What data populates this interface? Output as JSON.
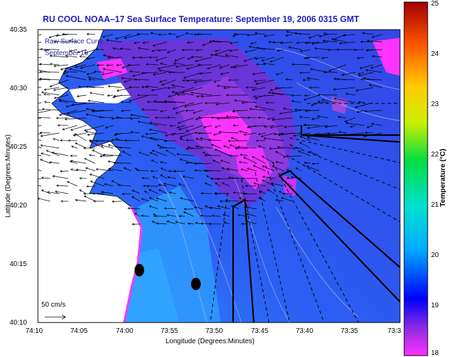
{
  "title": "RU COOL  NOAA–17  Sea Surface Temperature:  September 19, 2006 0315 GMT",
  "legend": {
    "line1": "Raw Surface Curre",
    "line2": "September 19"
  },
  "axes": {
    "xlabel": "Longitude (Degrees:Minutes)",
    "ylabel": "Latitude (Degrees:Minutes)",
    "xticks": [
      "74:10",
      "74:05",
      "74:00",
      "73:55",
      "73:50",
      "73:45",
      "73:40",
      "73:35",
      "73:3"
    ],
    "yticks": [
      "40:35",
      "40:30",
      "40:25",
      "40:20",
      "40:15",
      "40:10"
    ]
  },
  "colorbar": {
    "label": "Temperature (°C)",
    "min": 18,
    "max": 25,
    "ticks": [
      "25",
      "24",
      "23",
      "22",
      "21",
      "20",
      "19",
      "18"
    ]
  },
  "scale": {
    "label": "50 cm/s"
  },
  "colors": {
    "title": "#1f1fc0",
    "ocean_blue": "#2a5cf0",
    "ocean_light": "#2fa0ff",
    "warm_purple": "#7a2fd0",
    "magenta": "#ff33ff",
    "land": "#ffffff"
  }
}
